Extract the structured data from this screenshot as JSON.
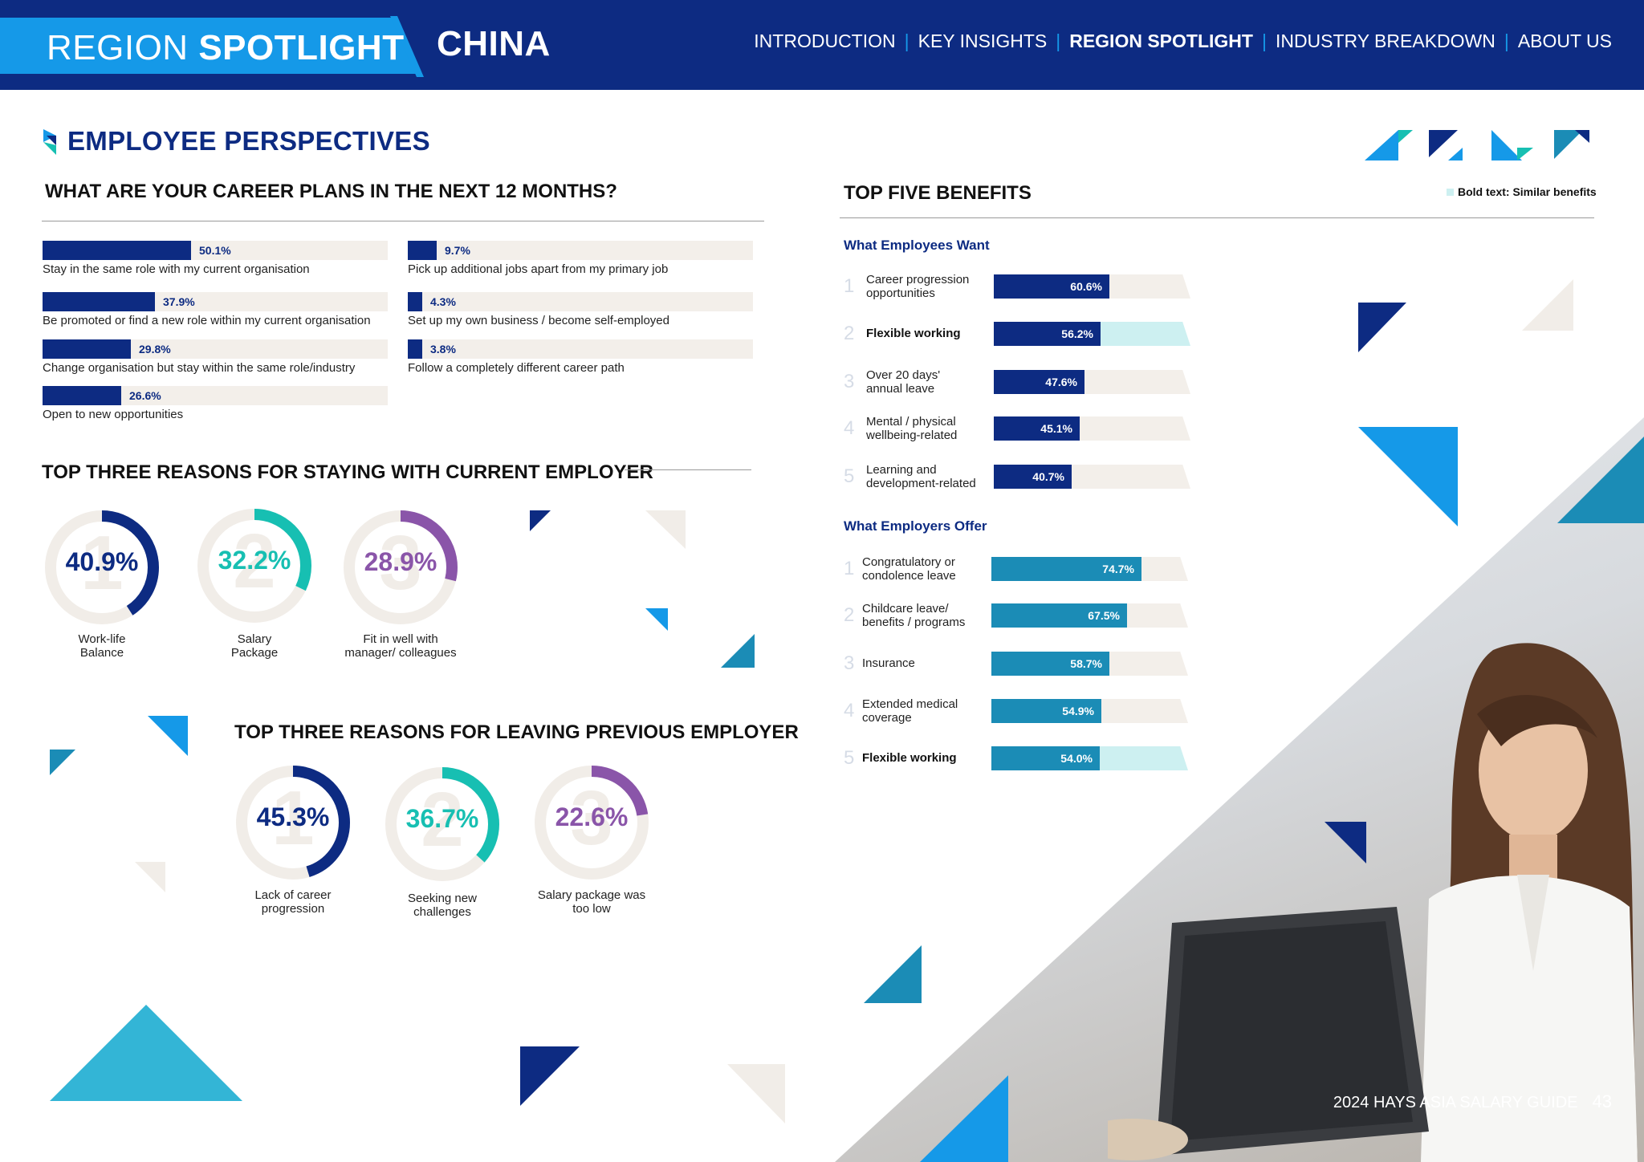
{
  "header": {
    "section_light": "REGION",
    "section_bold": "SPOTLIGHT",
    "country": "CHINA",
    "nav": [
      {
        "label": "INTRODUCTION",
        "active": false
      },
      {
        "label": "KEY INSIGHTS",
        "active": false
      },
      {
        "label": "REGION SPOTLIGHT",
        "active": true
      },
      {
        "label": "INDUSTRY BREAKDOWN",
        "active": false
      },
      {
        "label": "ABOUT US",
        "active": false
      }
    ],
    "separator": "|"
  },
  "section_title": "EMPLOYEE PERSPECTIVES",
  "colors": {
    "navy": "#0d2b82",
    "blue": "#1599e8",
    "teal": "#1b8cb6",
    "aqua": "#17bfb2",
    "purple": "#8a55a9",
    "track": "#f3efea",
    "similar": "#cdf0f1"
  },
  "footer": {
    "title": "2024 HAYS ASIA SALARY GUIDE",
    "page": "43"
  },
  "chart_data": [
    {
      "type": "bar",
      "orientation": "horizontal",
      "title": "WHAT ARE YOUR CAREER PLANS IN THE NEXT 12 MONTHS?",
      "unit": "%",
      "xlim": [
        0,
        100
      ],
      "categories": [
        "Stay in the same role with my current organisation",
        "Be promoted or find a new role within my current organisation",
        "Change organisation but stay within the same role/industry",
        "Open to new opportunities",
        "Pick up additional jobs apart from my primary job",
        "Set up my own business / become self-employed",
        "Follow a completely different career path"
      ],
      "values": [
        50.1,
        37.9,
        29.8,
        26.6,
        9.7,
        4.3,
        3.8
      ],
      "value_labels": [
        "50.1%",
        "37.9%",
        "29.8%",
        "26.6%",
        "9.7%",
        "4.3%",
        "3.8%"
      ]
    },
    {
      "type": "pie",
      "variant": "donut",
      "title": "TOP THREE REASONS FOR STAYING WITH CURRENT EMPLOYER",
      "items": [
        {
          "rank": "1",
          "label": "Work-life Balance",
          "label_lines": [
            "Work-life",
            "Balance"
          ],
          "value": 40.9,
          "value_label": "40.9%",
          "color": "#0d2b82"
        },
        {
          "rank": "2",
          "label": "Salary Package",
          "label_lines": [
            "Salary",
            "Package"
          ],
          "value": 32.2,
          "value_label": "32.2%",
          "color": "#17bfb2"
        },
        {
          "rank": "3",
          "label": "Fit in well with manager/ colleagues",
          "label_lines": [
            "Fit in well with",
            "manager/ colleagues"
          ],
          "value": 28.9,
          "value_label": "28.9%",
          "color": "#8a55a9"
        }
      ]
    },
    {
      "type": "pie",
      "variant": "donut",
      "title": "TOP THREE REASONS FOR LEAVING PREVIOUS EMPLOYER",
      "items": [
        {
          "rank": "1",
          "label": "Lack of career progression",
          "label_lines": [
            "Lack of career",
            "progression"
          ],
          "value": 45.3,
          "value_label": "45.3%",
          "color": "#0d2b82"
        },
        {
          "rank": "2",
          "label": "Seeking new challenges",
          "label_lines": [
            "Seeking new",
            "challenges"
          ],
          "value": 36.7,
          "value_label": "36.7%",
          "color": "#17bfb2"
        },
        {
          "rank": "3",
          "label": "Salary package was too low",
          "label_lines": [
            "Salary package was",
            "too low"
          ],
          "value": 22.6,
          "value_label": "22.6%",
          "color": "#8a55a9"
        }
      ]
    },
    {
      "type": "bar",
      "orientation": "horizontal",
      "title": "TOP FIVE BENEFITS",
      "legend": "Bold text: Similar benefits",
      "unit": "%",
      "xlim": [
        0,
        100
      ],
      "groups": [
        {
          "name": "What Employees Want",
          "color": "#0d2b82",
          "items": [
            {
              "rank": "1",
              "label": "Career progression opportunities",
              "label_lines": [
                "Career progression",
                "opportunities"
              ],
              "value": 60.6,
              "value_label": "60.6%",
              "similar": false
            },
            {
              "rank": "2",
              "label": "Flexible working",
              "label_lines": [
                "Flexible working"
              ],
              "value": 56.2,
              "value_label": "56.2%",
              "similar": true
            },
            {
              "rank": "3",
              "label": "Over 20 days' annual leave",
              "label_lines": [
                "Over 20 days'",
                "annual leave"
              ],
              "value": 47.6,
              "value_label": "47.6%",
              "similar": false
            },
            {
              "rank": "4",
              "label": "Mental / physical wellbeing-related",
              "label_lines": [
                "Mental / physical",
                "wellbeing-related"
              ],
              "value": 45.1,
              "value_label": "45.1%",
              "similar": false
            },
            {
              "rank": "5",
              "label": "Learning and development-related",
              "label_lines": [
                "Learning and",
                "development-related"
              ],
              "value": 40.7,
              "value_label": "40.7%",
              "similar": false
            }
          ]
        },
        {
          "name": "What Employers Offer",
          "color": "#1b8cb6",
          "items": [
            {
              "rank": "1",
              "label": "Congratulatory or condolence leave",
              "label_lines": [
                "Congratulatory or",
                "condolence leave"
              ],
              "value": 74.7,
              "value_label": "74.7%",
              "similar": false
            },
            {
              "rank": "2",
              "label": "Childcare leave/ benefits / programs",
              "label_lines": [
                "Childcare leave/",
                "benefits / programs"
              ],
              "value": 67.5,
              "value_label": "67.5%",
              "similar": false
            },
            {
              "rank": "3",
              "label": "Insurance",
              "label_lines": [
                "Insurance"
              ],
              "value": 58.7,
              "value_label": "58.7%",
              "similar": false
            },
            {
              "rank": "4",
              "label": "Extended medical coverage",
              "label_lines": [
                "Extended medical",
                "coverage"
              ],
              "value": 54.9,
              "value_label": "54.9%",
              "similar": false
            },
            {
              "rank": "5",
              "label": "Flexible working",
              "label_lines": [
                "Flexible working"
              ],
              "value": 54.0,
              "value_label": "54.0%",
              "similar": true
            }
          ]
        }
      ]
    }
  ]
}
